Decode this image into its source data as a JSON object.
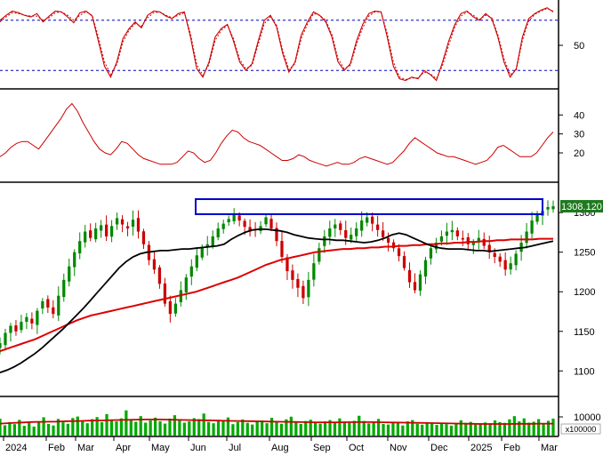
{
  "colors": {
    "background": "#ffffff",
    "frame": "#000000",
    "dashed": "#0000cc",
    "stoch_k": "#cc0000",
    "stoch_d": "#cc0000",
    "adx": "#cc0000",
    "candle_up": "#008800",
    "candle_down": "#cc0000",
    "ma_fast": "#000000",
    "ma_slow": "#dd0000",
    "volume": "#00aa00",
    "volume_ma": "#cc0000",
    "box": "#0000cc",
    "price_tag_bg": "#1d7a1d",
    "price_tag_text": "#ffffff"
  },
  "chart_data": [
    {
      "type": "line",
      "panel": "stochastic",
      "ylim": [
        0,
        100
      ],
      "ticks": [
        50
      ],
      "tick_labels": [
        "50"
      ],
      "levels": [
        80,
        20
      ],
      "grid": false,
      "series": [
        {
          "values": [
            80,
            86,
            91,
            89,
            86,
            84,
            88,
            78,
            85,
            91,
            90,
            84,
            77,
            89,
            91,
            85,
            55,
            25,
            12,
            30,
            58,
            70,
            78,
            71,
            86,
            91,
            90,
            85,
            82,
            88,
            90,
            60,
            22,
            12,
            30,
            60,
            70,
            75,
            55,
            30,
            20,
            28,
            55,
            80,
            86,
            72,
            40,
            18,
            30,
            62,
            78,
            90,
            86,
            78,
            60,
            30,
            20,
            28,
            55,
            75,
            88,
            91,
            90,
            60,
            25,
            10,
            8,
            12,
            10,
            20,
            15,
            8,
            30,
            55,
            75,
            88,
            91,
            84,
            80,
            88,
            82,
            60,
            30,
            12,
            22,
            60,
            82,
            88,
            92,
            95,
            90
          ]
        },
        {
          "values": [
            78,
            84,
            89,
            88,
            86,
            85,
            85,
            80,
            83,
            89,
            90,
            86,
            80,
            86,
            90,
            86,
            60,
            30,
            15,
            27,
            54,
            68,
            76,
            73,
            83,
            89,
            90,
            86,
            83,
            86,
            89,
            64,
            27,
            14,
            27,
            56,
            68,
            74,
            58,
            33,
            22,
            26,
            51,
            76,
            84,
            74,
            44,
            21,
            28,
            58,
            75,
            88,
            86,
            80,
            63,
            34,
            22,
            26,
            51,
            71,
            85,
            90,
            90,
            64,
            30,
            12,
            9,
            11,
            11,
            18,
            16,
            10,
            26,
            50,
            72,
            85,
            90,
            86,
            81,
            86,
            83,
            63,
            34,
            15,
            20,
            56,
            79,
            87,
            91,
            94,
            91
          ]
        }
      ]
    },
    {
      "type": "line",
      "panel": "adx",
      "ylim": [
        5,
        50
      ],
      "ticks": [
        20,
        30,
        40
      ],
      "tick_labels": [
        "20",
        "30",
        "40"
      ],
      "grid": false,
      "series": [
        {
          "values": [
            18,
            20,
            23,
            25,
            26,
            26,
            24,
            22,
            26,
            30,
            34,
            38,
            43,
            46,
            42,
            36,
            31,
            26,
            22,
            20,
            19,
            22,
            26,
            25,
            22,
            19,
            17,
            16,
            15,
            14,
            14,
            14,
            15,
            18,
            21,
            20,
            17,
            15,
            16,
            20,
            25,
            29,
            32,
            31,
            28,
            26,
            25,
            24,
            22,
            20,
            18,
            16,
            16,
            17,
            19,
            18,
            16,
            15,
            14,
            13,
            14,
            15,
            14,
            14,
            15,
            17,
            18,
            17,
            16,
            15,
            14,
            15,
            18,
            21,
            25,
            28,
            26,
            24,
            22,
            20,
            19,
            18,
            18,
            17,
            16,
            15,
            14,
            15,
            16,
            19,
            23,
            24,
            22,
            20,
            18,
            18,
            18,
            20,
            24,
            28,
            31
          ]
        }
      ]
    },
    {
      "type": "candlestick",
      "panel": "price",
      "ylim": [
        1070,
        1335
      ],
      "ticks": [
        1100,
        1150,
        1200,
        1250,
        1300
      ],
      "tick_labels": [
        "1100",
        "1150",
        "1200",
        "1250",
        "1300"
      ],
      "last_price_label": "1308.120",
      "resistance_box": [
        1298,
        1317
      ],
      "grid": false,
      "close": [
        1135,
        1148,
        1157,
        1150,
        1162,
        1168,
        1160,
        1176,
        1188,
        1180,
        1172,
        1195,
        1215,
        1232,
        1250,
        1264,
        1276,
        1268,
        1280,
        1284,
        1270,
        1283,
        1293,
        1285,
        1280,
        1291,
        1276,
        1260,
        1240,
        1228,
        1210,
        1185,
        1172,
        1185,
        1202,
        1218,
        1232,
        1246,
        1256,
        1260,
        1270,
        1280,
        1286,
        1292,
        1297,
        1290,
        1282,
        1276,
        1278,
        1283,
        1294,
        1280,
        1264,
        1244,
        1226,
        1215,
        1205,
        1192,
        1215,
        1236,
        1255,
        1270,
        1280,
        1285,
        1278,
        1268,
        1272,
        1280,
        1290,
        1294,
        1286,
        1278,
        1269,
        1262,
        1255,
        1245,
        1230,
        1212,
        1202,
        1222,
        1240,
        1255,
        1262,
        1270,
        1276,
        1278,
        1270,
        1266,
        1260,
        1262,
        1268,
        1258,
        1250,
        1244,
        1238,
        1228,
        1236,
        1248,
        1262,
        1276,
        1290,
        1297,
        1302,
        1307,
        1308
      ],
      "series": [
        {
          "name": "",
          "values": [
            1098,
            1101,
            1105,
            1110,
            1116,
            1122,
            1129,
            1137,
            1145,
            1153,
            1162,
            1171,
            1180,
            1190,
            1200,
            1210,
            1220,
            1230,
            1238,
            1244,
            1248,
            1250,
            1251,
            1252,
            1252,
            1253,
            1254,
            1254,
            1255,
            1256,
            1257,
            1258,
            1260,
            1266,
            1271,
            1275,
            1278,
            1279,
            1279,
            1278,
            1277,
            1275,
            1272,
            1270,
            1268,
            1267,
            1266,
            1266,
            1265,
            1265,
            1264,
            1263,
            1262,
            1263,
            1265,
            1268,
            1272,
            1274,
            1272,
            1268,
            1264,
            1260,
            1257,
            1255,
            1254,
            1254,
            1254,
            1253,
            1252,
            1252,
            1251,
            1252,
            1253,
            1254,
            1255,
            1256,
            1258,
            1260,
            1262,
            1264
          ]
        },
        {
          "name": "",
          "values": [
            1125,
            1128,
            1131,
            1134,
            1137,
            1140,
            1144,
            1148,
            1152,
            1156,
            1160,
            1164,
            1167,
            1170,
            1172,
            1174,
            1176,
            1178,
            1180,
            1182,
            1184,
            1186,
            1188,
            1190,
            1192,
            1194,
            1196,
            1198,
            1200,
            1203,
            1206,
            1209,
            1212,
            1215,
            1218,
            1222,
            1226,
            1230,
            1234,
            1237,
            1240,
            1242,
            1244,
            1246,
            1248,
            1250,
            1251,
            1252,
            1253,
            1254,
            1254,
            1255,
            1255,
            1256,
            1256,
            1257,
            1257,
            1258,
            1258,
            1259,
            1259,
            1260,
            1260,
            1261,
            1261,
            1262,
            1262,
            1263,
            1263,
            1264,
            1264,
            1265,
            1265,
            1266,
            1266,
            1266,
            1266,
            1267,
            1267,
            1267
          ]
        }
      ]
    },
    {
      "type": "bar",
      "panel": "volume",
      "ylim": [
        0,
        20000
      ],
      "ticks": [
        10000
      ],
      "tick_labels": [
        "10000"
      ],
      "unit_label": "x100000",
      "grid": false,
      "x_tick_labels": [
        "2024",
        "Feb",
        "Mar",
        "Apr",
        "May",
        "Jun",
        "Jul",
        "Aug",
        "Sep",
        "Oct",
        "Nov",
        "Dec",
        "2025",
        "Feb",
        "Mar"
      ],
      "values": [
        9000,
        5500,
        7200,
        6100,
        8400,
        5200,
        6800,
        4800,
        7600,
        9800,
        6200,
        5400,
        8900,
        7100,
        6300,
        9400,
        10200,
        7800,
        6600,
        8800,
        9900,
        7200,
        11500,
        8400,
        7600,
        9200,
        13500,
        8800,
        7400,
        10400,
        6900,
        8100,
        9600,
        7700,
        6400,
        9100,
        10900,
        8300,
        6900,
        7600,
        9300,
        8800,
        11800,
        7300,
        6600,
        8400,
        7900,
        9700,
        6100,
        7200,
        8600,
        6800,
        5900,
        7400,
        8100,
        6600,
        9500,
        7100,
        6300,
        8700,
        10100,
        7300,
        6200,
        7800,
        8500,
        7100,
        6400,
        7600,
        8300,
        6700,
        9200,
        7400,
        6800,
        7900,
        10600,
        7800,
        6500,
        7300,
        8900,
        6200,
        5900,
        7100,
        6800,
        5400,
        7600,
        8300,
        6300,
        5800,
        7200,
        6400,
        5700,
        6900,
        6100,
        5300,
        6600,
        8200,
        6800,
        7300,
        5900,
        6400,
        7000,
        6600,
        8100,
        7200,
        6800,
        8700,
        10400,
        7600,
        9200,
        6900,
        7400,
        8800,
        6400,
        7900,
        9100
      ]
    },
    {
      "type": "line",
      "panel": "volume",
      "series": [
        {
          "name": "",
          "values": [
            6400,
            6700,
            7000,
            7300,
            7400,
            7500,
            7700,
            7800,
            8000,
            8100,
            8300,
            8400,
            8500,
            8600,
            8600,
            8500,
            8400,
            8300,
            8200,
            8100,
            7900,
            7800,
            7700,
            7600,
            7500,
            7400,
            7300,
            7200,
            7100,
            7100,
            7100,
            7200,
            7200,
            7200,
            7100,
            7000,
            6900,
            6800,
            6700,
            6600,
            6500,
            6400,
            6300,
            6200,
            6200,
            6200,
            6300,
            6300,
            6400,
            6400
          ]
        }
      ]
    }
  ]
}
